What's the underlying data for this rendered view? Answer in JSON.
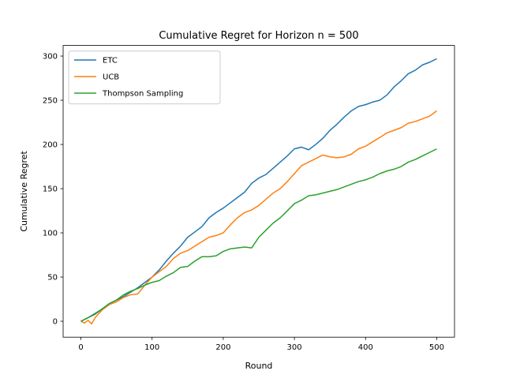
{
  "chart_data": {
    "type": "line",
    "title": "Cumulative Regret for Horizon n = 500",
    "xlabel": "Round",
    "ylabel": "Cumulative Regret",
    "xlim": [
      -25,
      525
    ],
    "ylim": [
      -18,
      312
    ],
    "xticks": [
      0,
      100,
      200,
      300,
      400,
      500
    ],
    "yticks": [
      0,
      50,
      100,
      150,
      200,
      250,
      300
    ],
    "xtick_labels": [
      "0",
      "100",
      "200",
      "300",
      "400",
      "500"
    ],
    "ytick_labels": [
      "0",
      "50",
      "100",
      "150",
      "200",
      "250",
      "300"
    ],
    "grid": false,
    "legend_position": "top-left",
    "series": [
      {
        "name": "ETC",
        "color": "#1f77b4",
        "points": [
          [
            0,
            0
          ],
          [
            10,
            4
          ],
          [
            20,
            8
          ],
          [
            30,
            14
          ],
          [
            40,
            20
          ],
          [
            50,
            24
          ],
          [
            60,
            28
          ],
          [
            70,
            33
          ],
          [
            80,
            38
          ],
          [
            90,
            44
          ],
          [
            100,
            50
          ],
          [
            110,
            58
          ],
          [
            120,
            68
          ],
          [
            130,
            77
          ],
          [
            140,
            85
          ],
          [
            150,
            95
          ],
          [
            160,
            101
          ],
          [
            170,
            107
          ],
          [
            180,
            117
          ],
          [
            190,
            123
          ],
          [
            200,
            128
          ],
          [
            210,
            134
          ],
          [
            220,
            140
          ],
          [
            230,
            146
          ],
          [
            240,
            156
          ],
          [
            250,
            162
          ],
          [
            260,
            166
          ],
          [
            270,
            173
          ],
          [
            280,
            180
          ],
          [
            290,
            187
          ],
          [
            300,
            195
          ],
          [
            310,
            197
          ],
          [
            320,
            194
          ],
          [
            330,
            200
          ],
          [
            340,
            207
          ],
          [
            350,
            216
          ],
          [
            360,
            223
          ],
          [
            370,
            231
          ],
          [
            380,
            238
          ],
          [
            390,
            243
          ],
          [
            400,
            245
          ],
          [
            410,
            248
          ],
          [
            420,
            250
          ],
          [
            430,
            256
          ],
          [
            440,
            265
          ],
          [
            450,
            272
          ],
          [
            460,
            280
          ],
          [
            470,
            284
          ],
          [
            480,
            290
          ],
          [
            490,
            293
          ],
          [
            500,
            297
          ]
        ]
      },
      {
        "name": "UCB",
        "color": "#ff7f0e",
        "points": [
          [
            0,
            0
          ],
          [
            5,
            -2
          ],
          [
            10,
            1
          ],
          [
            15,
            -3
          ],
          [
            20,
            4
          ],
          [
            30,
            13
          ],
          [
            40,
            19
          ],
          [
            50,
            22
          ],
          [
            60,
            27
          ],
          [
            70,
            30
          ],
          [
            80,
            31
          ],
          [
            90,
            41
          ],
          [
            100,
            50
          ],
          [
            110,
            56
          ],
          [
            120,
            62
          ],
          [
            130,
            71
          ],
          [
            140,
            77
          ],
          [
            150,
            80
          ],
          [
            160,
            85
          ],
          [
            170,
            90
          ],
          [
            180,
            95
          ],
          [
            190,
            97
          ],
          [
            200,
            100
          ],
          [
            210,
            109
          ],
          [
            220,
            117
          ],
          [
            230,
            123
          ],
          [
            240,
            126
          ],
          [
            250,
            131
          ],
          [
            260,
            138
          ],
          [
            270,
            145
          ],
          [
            280,
            150
          ],
          [
            290,
            158
          ],
          [
            300,
            167
          ],
          [
            310,
            176
          ],
          [
            320,
            180
          ],
          [
            330,
            184
          ],
          [
            340,
            188
          ],
          [
            350,
            186
          ],
          [
            360,
            185
          ],
          [
            370,
            186
          ],
          [
            380,
            189
          ],
          [
            390,
            195
          ],
          [
            400,
            198
          ],
          [
            410,
            203
          ],
          [
            420,
            208
          ],
          [
            430,
            213
          ],
          [
            440,
            216
          ],
          [
            450,
            219
          ],
          [
            460,
            224
          ],
          [
            470,
            226
          ],
          [
            480,
            229
          ],
          [
            490,
            232
          ],
          [
            500,
            238
          ]
        ]
      },
      {
        "name": "Thompson Sampling",
        "color": "#2ca02c",
        "points": [
          [
            0,
            0
          ],
          [
            10,
            4
          ],
          [
            20,
            9
          ],
          [
            30,
            14
          ],
          [
            40,
            20
          ],
          [
            50,
            24
          ],
          [
            60,
            30
          ],
          [
            70,
            34
          ],
          [
            80,
            37
          ],
          [
            90,
            41
          ],
          [
            100,
            44
          ],
          [
            110,
            46
          ],
          [
            120,
            51
          ],
          [
            130,
            55
          ],
          [
            140,
            61
          ],
          [
            150,
            62
          ],
          [
            160,
            68
          ],
          [
            170,
            73
          ],
          [
            180,
            73
          ],
          [
            190,
            74
          ],
          [
            200,
            79
          ],
          [
            210,
            82
          ],
          [
            220,
            83
          ],
          [
            230,
            84
          ],
          [
            240,
            83
          ],
          [
            250,
            95
          ],
          [
            260,
            103
          ],
          [
            270,
            111
          ],
          [
            280,
            117
          ],
          [
            290,
            125
          ],
          [
            300,
            133
          ],
          [
            310,
            137
          ],
          [
            320,
            142
          ],
          [
            330,
            143
          ],
          [
            340,
            145
          ],
          [
            350,
            147
          ],
          [
            360,
            149
          ],
          [
            370,
            152
          ],
          [
            380,
            155
          ],
          [
            390,
            158
          ],
          [
            400,
            160
          ],
          [
            410,
            163
          ],
          [
            420,
            167
          ],
          [
            430,
            170
          ],
          [
            440,
            172
          ],
          [
            450,
            175
          ],
          [
            460,
            180
          ],
          [
            470,
            183
          ],
          [
            480,
            187
          ],
          [
            490,
            191
          ],
          [
            500,
            195
          ]
        ]
      }
    ]
  }
}
